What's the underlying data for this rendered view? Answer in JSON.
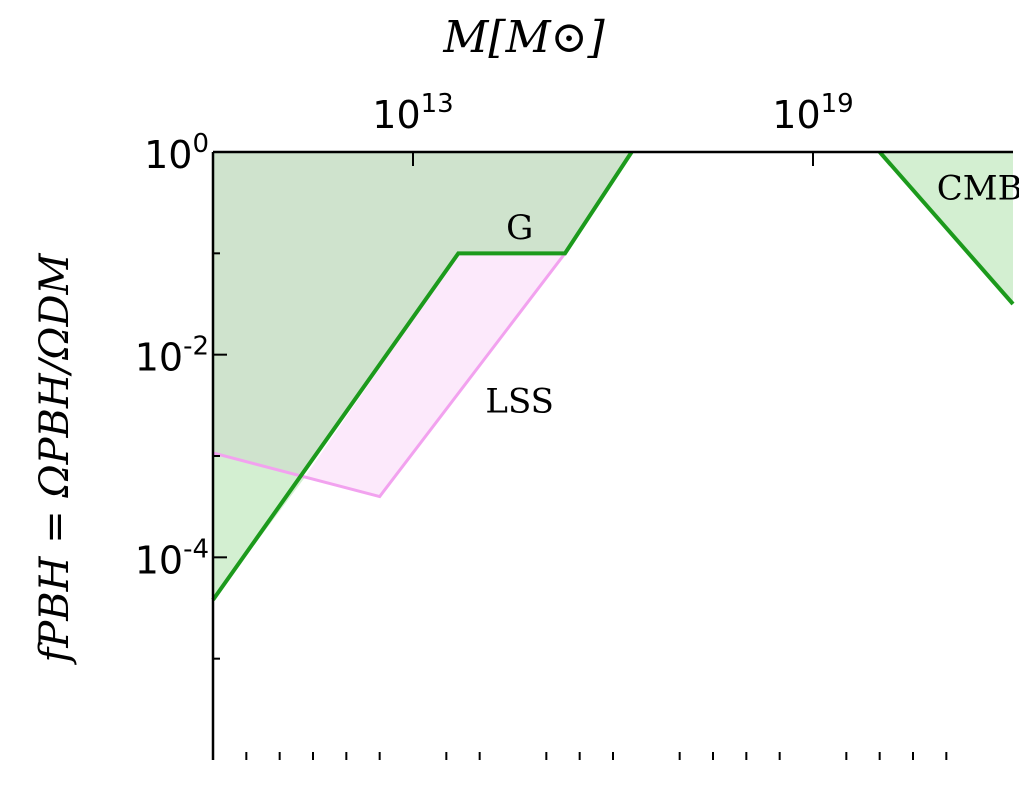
{
  "chart_data": {
    "type": "area",
    "title": "",
    "xlabel": "M[M⊙]",
    "ylabel": "fPBH = ΩPBH/ΩDM",
    "x_scale": "log",
    "y_scale": "log",
    "xlim": [
      10,
      22
    ],
    "ylim": [
      -6,
      0
    ],
    "x_tick_labels": [
      {
        "value": 13,
        "label": "10",
        "exponent": "13"
      },
      {
        "value": 19,
        "label": "10",
        "exponent": "19"
      }
    ],
    "y_tick_labels": [
      {
        "value": 0,
        "label": "10",
        "exponent": "0"
      },
      {
        "value": -2,
        "label": "10",
        "exponent": "-2"
      },
      {
        "value": -4,
        "label": "10",
        "exponent": "-4"
      }
    ],
    "y_minor_ticks": [
      -1,
      -3,
      -5
    ],
    "x_minor_ticks": [
      10.5,
      11,
      11.5,
      12,
      12.5,
      13.5,
      14,
      15,
      15.5,
      16,
      17,
      17.5,
      18,
      18.5,
      19.5,
      20,
      20.5,
      21
    ],
    "grid": false,
    "series": [
      {
        "name": "G",
        "color": "#1c9a1c",
        "fill": "#cfe3cd",
        "x": [
          10,
          13.68,
          15.28,
          16.28
        ],
        "y": [
          -4.42,
          -1.0,
          -1.0,
          0
        ]
      },
      {
        "name": "LSS",
        "color": "#f2a2ef",
        "fill": "#fce9fb",
        "x": [
          10,
          12.5,
          15.28,
          13.68
        ],
        "y": [
          -2.97,
          -3.4,
          -1.0,
          -1.0
        ]
      },
      {
        "name": "CMB",
        "color": "#1c9a1c",
        "fill": "#d3efd1",
        "x": [
          20.0,
          22
        ],
        "y": [
          0,
          -1.5
        ]
      }
    ],
    "annotations": [
      {
        "text": "G",
        "x": 14.6,
        "y": -0.74
      },
      {
        "text": "LSS",
        "x": 14.6,
        "y": -2.45
      },
      {
        "text": "CMB",
        "x": 21.5,
        "y": -0.35
      }
    ]
  }
}
